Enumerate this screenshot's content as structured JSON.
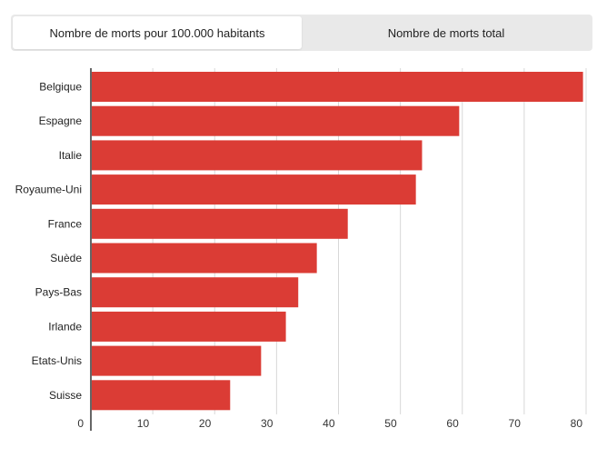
{
  "tabs": [
    {
      "label": "Nombre de morts pour 100.000 habitants",
      "active": true
    },
    {
      "label": "Nombre de morts total",
      "active": false
    }
  ],
  "colors": {
    "bar": "#db3c35",
    "grid": "#d8d8d8",
    "axis": "#333333",
    "tab_bar_bg": "#e9e9e9",
    "tab_active_bg": "#ffffff"
  },
  "chart_data": {
    "type": "bar",
    "orientation": "horizontal",
    "categories": [
      "Belgique",
      "Espagne",
      "Italie",
      "Royaume-Uni",
      "France",
      "Suède",
      "Pays-Bas",
      "Irlande",
      "Etats-Unis",
      "Suisse"
    ],
    "values": [
      79.5,
      59.5,
      53.5,
      52.5,
      41.5,
      36.5,
      33.5,
      31.5,
      27.5,
      22.5
    ],
    "xlim": [
      0,
      80
    ],
    "xticks": [
      0,
      10,
      20,
      30,
      40,
      50,
      60,
      70,
      80
    ],
    "grid": true,
    "title": "",
    "xlabel": "",
    "ylabel": ""
  }
}
